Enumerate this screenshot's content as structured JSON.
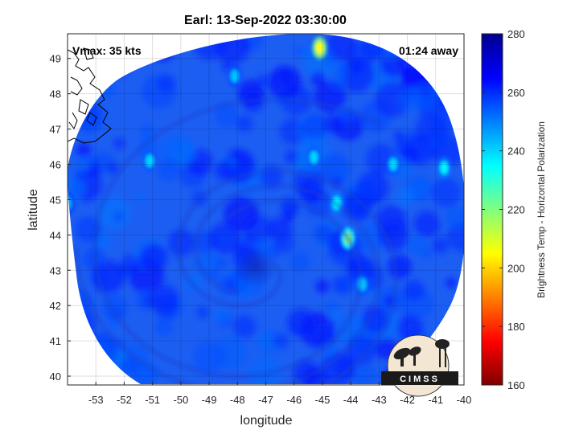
{
  "title": "Earl: 13-Sep-2022 03:30:00",
  "annotations": {
    "vmax": "Vmax: 35 kts",
    "time_away": "01:24 away"
  },
  "axes": {
    "xlabel": "longitude",
    "ylabel": "latitude",
    "x_ticks": [
      "-53",
      "-52",
      "-51",
      "-50",
      "-49",
      "-48",
      "-47",
      "-46",
      "-45",
      "-44",
      "-43",
      "-42",
      "-41",
      "-40"
    ],
    "y_ticks": [
      "40",
      "41",
      "42",
      "43",
      "44",
      "45",
      "46",
      "47",
      "48",
      "49"
    ],
    "xlim": [
      -54,
      -40
    ],
    "ylim": [
      39.75,
      49.7
    ]
  },
  "colorbar": {
    "label": "Brightness Temp - Horizontal Polarization",
    "ticks": [
      "280",
      "260",
      "240",
      "220",
      "200",
      "180",
      "160"
    ],
    "range": [
      160,
      280
    ],
    "colormap": "jet-reversed"
  },
  "logo": {
    "text": "CIMSS"
  },
  "chart_data": {
    "type": "heatmap",
    "title": "Earl: 13-Sep-2022 03:30:00",
    "xlabel": "longitude",
    "ylabel": "latitude",
    "xlim": [
      -54,
      -40
    ],
    "ylim": [
      39.75,
      49.7
    ],
    "grid": true,
    "colorbar_range": [
      160,
      280
    ],
    "colorbar_label": "Brightness Temp - Horizontal Polarization",
    "swath_background_value": 258,
    "storm_center": [
      -47.3,
      43.2
    ],
    "warm_features": [
      {
        "lon": -45.1,
        "lat": 49.3,
        "value": 205
      },
      {
        "lon": -44.1,
        "lat": 43.9,
        "value": 220
      },
      {
        "lon": -44.5,
        "lat": 44.9,
        "value": 235
      },
      {
        "lon": -45.3,
        "lat": 46.2,
        "value": 240
      },
      {
        "lon": -43.6,
        "lat": 42.6,
        "value": 240
      },
      {
        "lon": -40.7,
        "lat": 45.9,
        "value": 236
      },
      {
        "lon": -51.1,
        "lat": 46.1,
        "value": 240
      },
      {
        "lon": -48.1,
        "lat": 48.5,
        "value": 242
      },
      {
        "lon": -54.0,
        "lat": 44.9,
        "value": 244
      },
      {
        "lon": -42.5,
        "lat": 46.0,
        "value": 240
      }
    ]
  }
}
